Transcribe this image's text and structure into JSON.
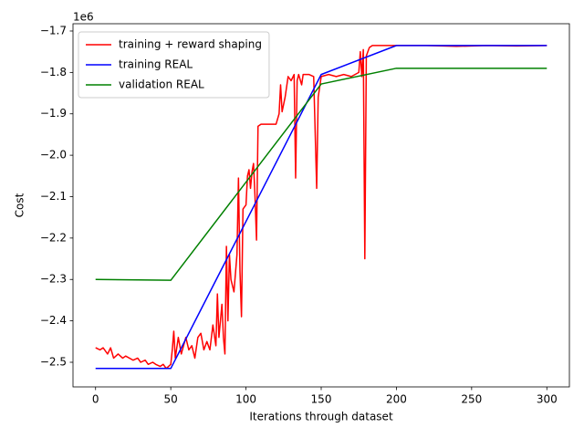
{
  "chart_data": {
    "type": "line",
    "x_label": "Iterations through dataset",
    "y_label": "Cost",
    "y_offset_text": "1e6",
    "xlim": [
      -15,
      315
    ],
    "ylim": [
      -2.5595,
      -1.6824
    ],
    "xticks": [
      0,
      50,
      100,
      150,
      200,
      250,
      300
    ],
    "yticks": [
      {
        "value": -2.5,
        "label": "−2.5"
      },
      {
        "value": -2.4,
        "label": "−2.4"
      },
      {
        "value": -2.3,
        "label": "−2.3"
      },
      {
        "value": -2.2,
        "label": "−2.2"
      },
      {
        "value": -2.1,
        "label": "−2.1"
      },
      {
        "value": -2.0,
        "label": "−2.0"
      },
      {
        "value": -1.9,
        "label": "−1.9"
      },
      {
        "value": -1.8,
        "label": "−1.8"
      },
      {
        "value": -1.7,
        "label": "−1.7"
      }
    ],
    "legend": "upper left",
    "series": [
      {
        "name": "training + reward shaping",
        "color": "#ff0000",
        "x": [
          0,
          3,
          5,
          8,
          10,
          12,
          15,
          18,
          20,
          25,
          28,
          30,
          33,
          35,
          38,
          40,
          43,
          45,
          47,
          50,
          51,
          52,
          53,
          55,
          57,
          60,
          62,
          64,
          66,
          68,
          70,
          72,
          74,
          76,
          78,
          80,
          81,
          82,
          84,
          85,
          86,
          87,
          88,
          89,
          90,
          92,
          94,
          95,
          96,
          97,
          98,
          100,
          101,
          102,
          103,
          104,
          105,
          106,
          107,
          108,
          110,
          115,
          120,
          122,
          123,
          124,
          126,
          128,
          130,
          132,
          133,
          134,
          135,
          137,
          138,
          142,
          145,
          147,
          148,
          150,
          155,
          160,
          165,
          170,
          175,
          176,
          177,
          178,
          179,
          180,
          182,
          184,
          190,
          200,
          220,
          240,
          260,
          280,
          300
        ],
        "values": [
          -2.465,
          -2.47,
          -2.465,
          -2.48,
          -2.465,
          -2.49,
          -2.48,
          -2.49,
          -2.485,
          -2.495,
          -2.49,
          -2.5,
          -2.495,
          -2.505,
          -2.5,
          -2.505,
          -2.51,
          -2.505,
          -2.515,
          -2.505,
          -2.47,
          -2.425,
          -2.49,
          -2.44,
          -2.48,
          -2.44,
          -2.47,
          -2.46,
          -2.49,
          -2.44,
          -2.43,
          -2.47,
          -2.45,
          -2.47,
          -2.41,
          -2.46,
          -2.335,
          -2.44,
          -2.36,
          -2.44,
          -2.48,
          -2.22,
          -2.4,
          -2.24,
          -2.3,
          -2.33,
          -2.24,
          -2.055,
          -2.28,
          -2.39,
          -2.13,
          -2.12,
          -2.05,
          -2.035,
          -2.08,
          -2.04,
          -2.02,
          -2.1,
          -2.205,
          -1.93,
          -1.925,
          -1.925,
          -1.925,
          -1.9,
          -1.83,
          -1.895,
          -1.86,
          -1.81,
          -1.82,
          -1.805,
          -2.055,
          -1.82,
          -1.805,
          -1.83,
          -1.805,
          -1.805,
          -1.81,
          -2.08,
          -1.86,
          -1.81,
          -1.805,
          -1.81,
          -1.805,
          -1.81,
          -1.8,
          -1.75,
          -1.81,
          -1.745,
          -2.25,
          -1.76,
          -1.74,
          -1.735,
          -1.735,
          -1.735,
          -1.735,
          -1.737,
          -1.735,
          -1.736,
          -1.735
        ]
      },
      {
        "name": "training REAL",
        "color": "#0000ff",
        "x": [
          0,
          50,
          150,
          200,
          300
        ],
        "values": [
          -2.515,
          -2.515,
          -1.805,
          -1.735,
          -1.735
        ]
      },
      {
        "name": "validation REAL",
        "color": "#008000",
        "x": [
          0,
          50,
          150,
          200,
          300
        ],
        "values": [
          -2.3,
          -2.302,
          -1.828,
          -1.79,
          -1.79
        ]
      }
    ]
  }
}
